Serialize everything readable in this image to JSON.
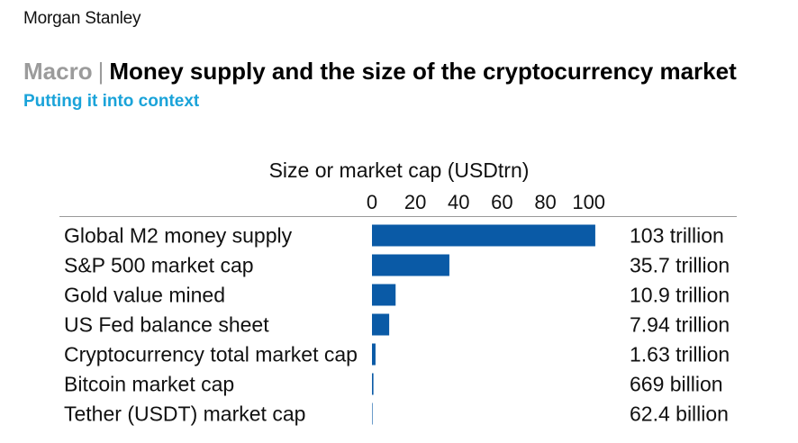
{
  "header": {
    "brand": "Morgan Stanley",
    "section": "Macro",
    "separator": "|",
    "title": "Money supply and the size of the cryptocurrency market",
    "subtitle": "Putting it into context"
  },
  "colors": {
    "bar": "#0a5aa6",
    "subtitle": "#1aa3d9",
    "section": "#9b9b9b"
  },
  "chart_data": {
    "type": "bar",
    "orientation": "horizontal",
    "title": "Size or market cap (USDtrn)",
    "xlabel": "",
    "ylabel": "",
    "xlim": [
      0,
      106
    ],
    "ticks": [
      0,
      20,
      40,
      60,
      80,
      100
    ],
    "grid": false,
    "categories": [
      "Global M2 money supply",
      "S&P 500 market cap",
      "Gold value mined",
      "US Fed balance sheet",
      "Cryptocurrency total market cap",
      "Bitcoin market cap",
      "Tether (USDT) market cap"
    ],
    "values": [
      103,
      35.7,
      10.9,
      7.94,
      1.63,
      0.669,
      0.0624
    ],
    "value_labels": [
      "103 trillion",
      "35.7 trillion",
      "10.9 trillion",
      "7.94 trillion",
      "1.63 trillion",
      "669 billion",
      "62.4 billion"
    ]
  }
}
